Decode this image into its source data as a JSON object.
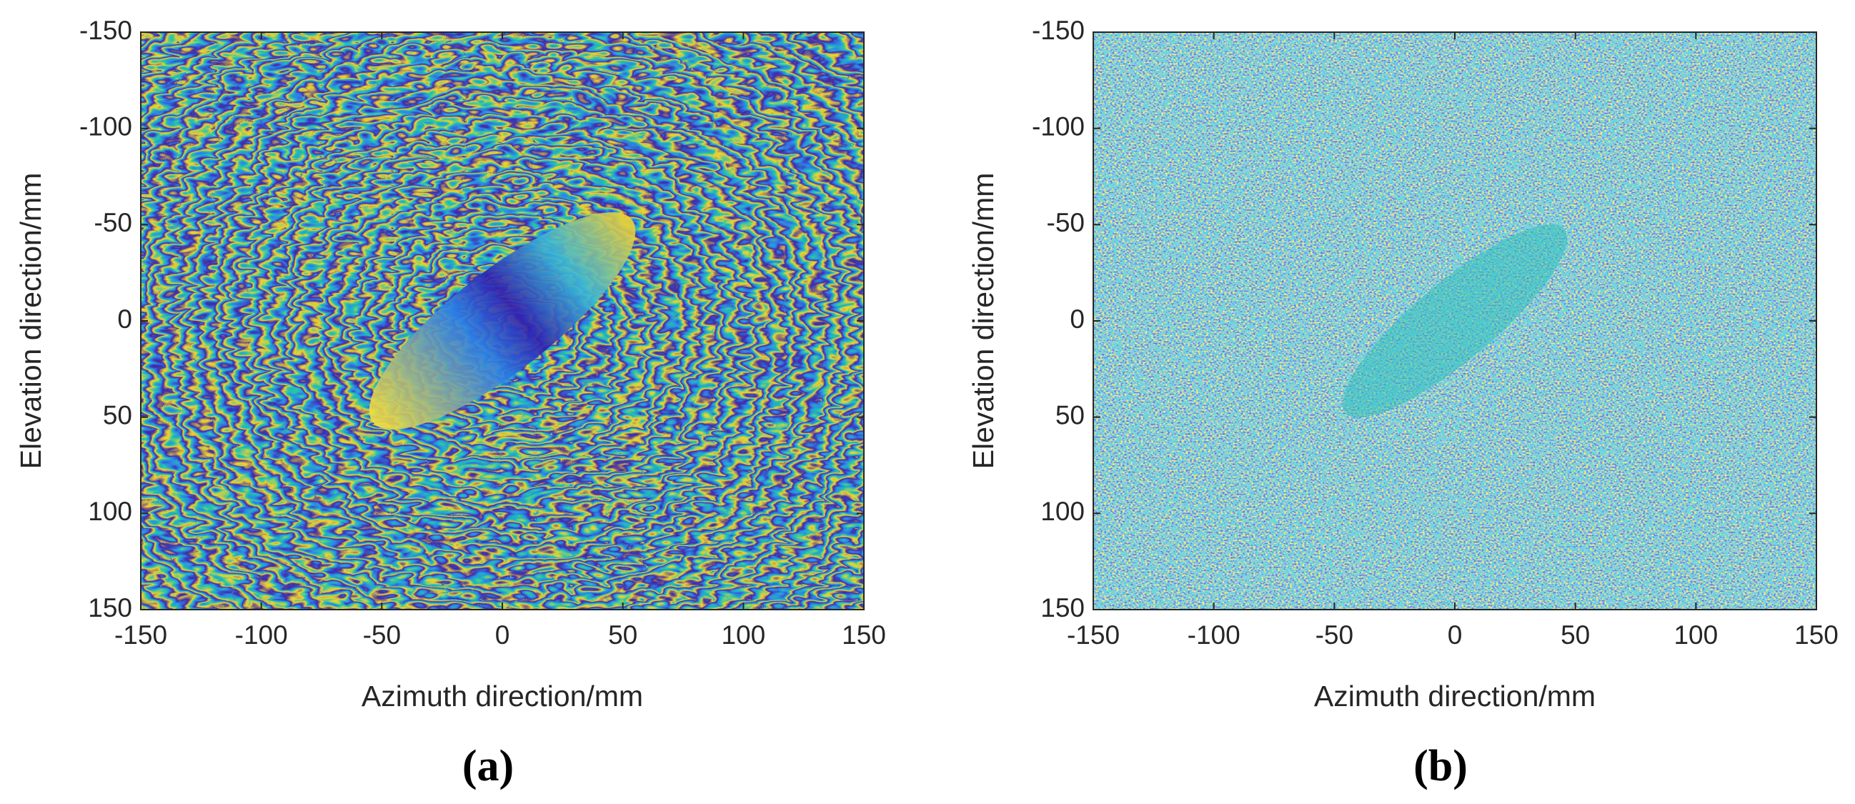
{
  "chart_data": [
    {
      "type": "heatmap",
      "panel_label": "(a)",
      "xlabel": "Azimuth direction/mm",
      "ylabel": "Elevation direction/mm",
      "xlim": [
        -150,
        150
      ],
      "ylim": [
        -150,
        150
      ],
      "y_reversed": true,
      "xticks": [
        -150,
        -100,
        -50,
        0,
        50,
        100,
        150
      ],
      "yticks": [
        -150,
        -100,
        -50,
        0,
        50,
        100,
        150
      ]
    },
    {
      "type": "heatmap",
      "panel_label": "(b)",
      "xlabel": "Azimuth direction/mm",
      "ylabel": "Elevation direction/mm",
      "xlim": [
        -150,
        150
      ],
      "ylim": [
        -150,
        150
      ],
      "y_reversed": true,
      "xticks": [
        -150,
        -100,
        -50,
        0,
        50,
        100,
        150
      ],
      "yticks": [
        -150,
        -100,
        -50,
        0,
        50,
        100,
        150
      ]
    }
  ]
}
